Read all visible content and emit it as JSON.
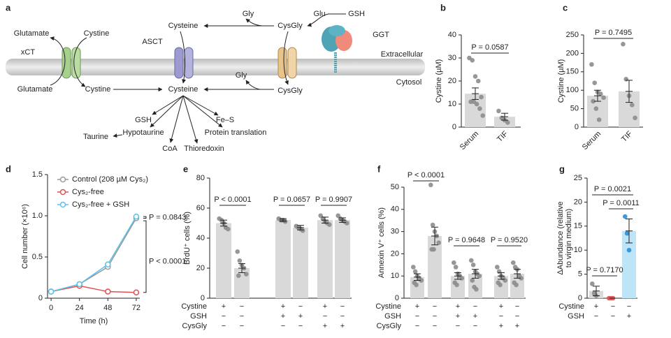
{
  "diagram": {
    "panel": "a",
    "labels": [
      "Gly",
      "Glu",
      "GSH",
      "Cysteine",
      "CysGly",
      "GGT",
      "Glutamate",
      "Cystine",
      "xCT",
      "ASCT",
      "Extracellular",
      "Glutamate",
      "Cystine",
      "Cysteine",
      "Gly",
      "CysGly",
      "Cytosol",
      "GSH",
      "Fe–S",
      "Taurine",
      "Hypotaurine",
      "Protein translation",
      "CoA",
      "Thioredoxin"
    ]
  },
  "chart_data": [
    {
      "panel": "b",
      "type": "bar",
      "categories": [
        "Serum",
        "TIF"
      ],
      "values": [
        14.5,
        4.5
      ],
      "errors": [
        2.5,
        1.5
      ],
      "points": [
        [
          30,
          29,
          22,
          20,
          13,
          11,
          11,
          10,
          8,
          5
        ],
        [
          7,
          4,
          3,
          2
        ]
      ],
      "colors": [
        "#d9d9d9",
        "#d9d9d9"
      ],
      "point_colors": [
        "#8c8c8c",
        "#8c8c8c"
      ],
      "ylabel": [
        "Cystine (µM)"
      ],
      "ylim": [
        0,
        40
      ],
      "yticks": [
        0,
        10,
        20,
        30,
        40
      ],
      "annotations": [
        "P = 0.0587"
      ]
    },
    {
      "panel": "c",
      "type": "bar",
      "categories": [
        "Serum",
        "TIF"
      ],
      "values": [
        85,
        97
      ],
      "errors": [
        15,
        30
      ],
      "points": [
        [
          170,
          120,
          95,
          90,
          80,
          70,
          50,
          20
        ],
        [
          225,
          130,
          85,
          60,
          25
        ]
      ],
      "colors": [
        "#d9d9d9",
        "#d9d9d9"
      ],
      "point_colors": [
        "#8c8c8c",
        "#8c8c8c"
      ],
      "ylabel": [
        "Cystine (µM)"
      ],
      "ylim": [
        0,
        250
      ],
      "yticks": [
        0,
        50,
        100,
        150,
        200,
        250
      ],
      "annotations": [
        "P = 0.7495"
      ]
    },
    {
      "panel": "d",
      "type": "line",
      "x": [
        0,
        24,
        48,
        72
      ],
      "series": [
        {
          "name": "Control (208 µM Cys₂)",
          "color": "#9a9a9a",
          "values": [
            0.08,
            0.17,
            0.38,
            0.97
          ]
        },
        {
          "name": "Cys₂-free",
          "color": "#e05050",
          "values": [
            0.08,
            0.15,
            0.08,
            0.07
          ]
        },
        {
          "name": "Cys₂-free + GSH",
          "color": "#5bc0ea",
          "values": [
            0.08,
            0.17,
            0.41,
            0.99
          ]
        }
      ],
      "xlim": [
        -3,
        75
      ],
      "xticks": [
        0,
        24,
        48,
        72
      ],
      "ylim": [
        0,
        1.5
      ],
      "yticks": [
        0,
        0.5,
        {
          "value": 1,
          "label": "1.0"
        },
        1.5
      ],
      "xlabel": "Time (h)",
      "ylabel": [
        "Cell number (×10⁶)"
      ],
      "annotations": [
        "P = 0.0843",
        "P < 0.0001"
      ]
    },
    {
      "panel": "e",
      "type": "bar",
      "values": [
        50,
        20,
        52,
        47,
        52,
        52
      ],
      "errors": [
        2,
        3,
        1,
        1.5,
        2,
        1.5
      ],
      "points": [
        [
          53,
          52,
          50,
          47,
          46
        ],
        [
          31,
          25,
          22,
          20,
          16,
          15
        ],
        [
          53,
          52,
          52,
          51
        ],
        [
          48,
          47,
          46,
          45
        ],
        [
          55,
          53,
          51,
          50,
          49
        ],
        [
          55,
          53,
          52,
          51,
          50
        ]
      ],
      "colors": [
        "#d9d9d9",
        "#d9d9d9",
        "#d9d9d9",
        "#d9d9d9",
        "#d9d9d9",
        "#d9d9d9"
      ],
      "point_colors": [
        "#8c8c8c",
        "#8c8c8c",
        "#8c8c8c",
        "#8c8c8c",
        "#8c8c8c",
        "#8c8c8c"
      ],
      "ylabel": [
        "BrdU⁺ cells (%)"
      ],
      "ylim": [
        0,
        80
      ],
      "yticks": [
        0,
        20,
        40,
        60,
        80
      ],
      "conditions": [
        {
          "name": "Cystine",
          "values": [
            "+",
            "−",
            "+",
            "−",
            "+",
            "−"
          ]
        },
        {
          "name": "GSH",
          "values": [
            "−",
            "−",
            "+",
            "+",
            "−",
            "−"
          ]
        },
        {
          "name": "CysGly",
          "values": [
            "−",
            "−",
            "−",
            "−",
            "+",
            "+"
          ]
        }
      ],
      "annotations": [
        "P < 0.0001",
        "P = 0.0657",
        "P = 0.9907"
      ]
    },
    {
      "panel": "f",
      "type": "bar",
      "values": [
        9.5,
        28,
        10,
        11,
        10,
        11
      ],
      "errors": [
        1.5,
        4,
        1.5,
        2,
        1.5,
        2
      ],
      "points": [
        [
          14,
          12,
          10,
          9,
          8,
          7,
          6
        ],
        [
          51,
          33,
          30,
          28,
          25,
          22,
          22
        ],
        [
          16,
          14,
          11,
          10,
          9,
          7,
          6
        ],
        [
          17,
          15,
          12,
          11,
          10,
          8,
          5,
          4
        ],
        [
          14,
          12,
          10,
          9,
          8,
          7,
          6
        ],
        [
          16,
          14,
          13,
          10,
          9,
          7,
          6
        ]
      ],
      "colors": [
        "#d9d9d9",
        "#d9d9d9",
        "#d9d9d9",
        "#d9d9d9",
        "#d9d9d9",
        "#d9d9d9"
      ],
      "point_colors": [
        "#8c8c8c",
        "#8c8c8c",
        "#8c8c8c",
        "#8c8c8c",
        "#8c8c8c",
        "#8c8c8c"
      ],
      "ylabel": [
        "Annexin V⁺ cells (%)"
      ],
      "ylim": [
        0,
        50
      ],
      "yticks": [
        0,
        10,
        20,
        30,
        40,
        50
      ],
      "conditions": [
        {
          "name": "Cystine",
          "values": [
            "+",
            "−",
            "+",
            "−",
            "+",
            "−"
          ]
        },
        {
          "name": "GSH",
          "values": [
            "−",
            "−",
            "+",
            "+",
            "−",
            "−"
          ]
        },
        {
          "name": "CysGly",
          "values": [
            "−",
            "−",
            "−",
            "−",
            "+",
            "+"
          ]
        }
      ],
      "annotations": [
        "P < 0.0001",
        "P = 0.9648",
        "P = 0.9520"
      ]
    },
    {
      "panel": "g",
      "type": "bar",
      "values": [
        1.5,
        0,
        14
      ],
      "errors": [
        1,
        0,
        2.5
      ],
      "points": [
        [
          3,
          1,
          0.5
        ],
        [
          0,
          0,
          0
        ],
        [
          17,
          13.5,
          10
        ]
      ],
      "colors": [
        "#d9d9d9",
        "#f4b8b8",
        "#bde4f7"
      ],
      "point_colors": [
        "#8c8c8c",
        "#e05050",
        "#2a8fd6"
      ],
      "ylabel": [
        "ΔAbundance (relative",
        "to virgin medium)"
      ],
      "ylim": [
        0,
        25
      ],
      "yticks": [
        0,
        5,
        10,
        15,
        20,
        25
      ],
      "conditions": [
        {
          "name": "Cystine",
          "values": [
            "+",
            "−",
            "−"
          ]
        },
        {
          "name": "GSH",
          "values": [
            "−",
            "−",
            "+"
          ]
        }
      ],
      "annotations": [
        "P = 0.7170",
        "P = 0.0021",
        "P = 0.0011"
      ]
    }
  ]
}
